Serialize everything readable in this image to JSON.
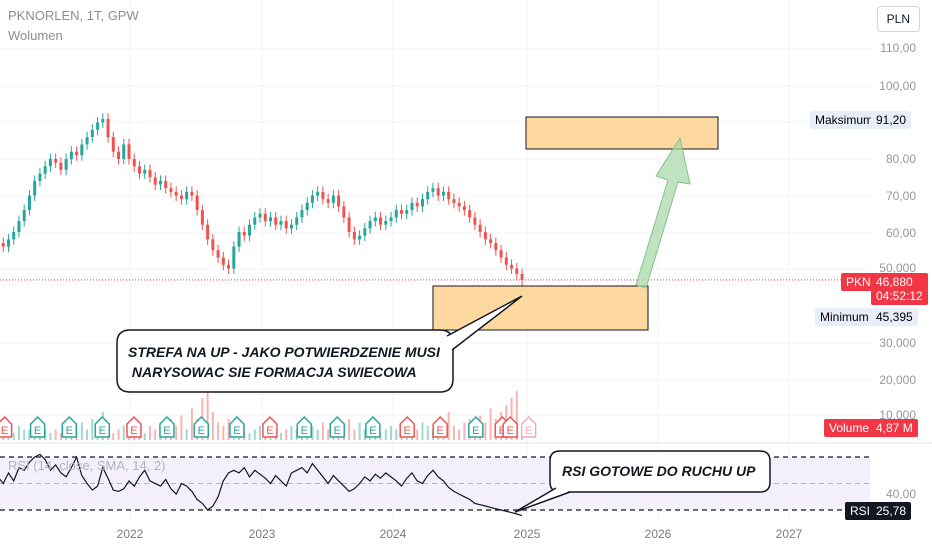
{
  "header": {
    "symbol": "PKNORLEN, 1T, GPW",
    "indicator": "Wolumen",
    "currency": "PLN"
  },
  "price_axis": [
    "110,00",
    "100,00",
    "80,00",
    "70,00",
    "60,00",
    "50,000",
    "30,000",
    "20,000",
    "10,000",
    "40,00"
  ],
  "tags": {
    "max_label": "Maksimum",
    "max_value": "91,20",
    "min_label": "Minimum",
    "min_value": "45,395",
    "pkn_label": "PKN",
    "pkn_price": "46,880",
    "pkn_timer": "04:52:12",
    "vol_label": "Volume",
    "vol_value": "4,87 M",
    "rsi_label": "RSI",
    "rsi_value": "25,78"
  },
  "rsi_legend": "RSI (14, close, SMA, 14, 2)",
  "annotations": {
    "zone": "STREFA NA UP - JAKO POTWIERDZENIE MUSI",
    "zone2": " NARYSOWAC SIE FORMACJA SWIECOWA",
    "rsi": "RSI GOTOWE DO RUCHU UP"
  },
  "colors": {
    "up": "#26a69a",
    "down": "#ef5350",
    "zone_fill": "#fdd9a0",
    "arrow": "#a5d6a7",
    "tag_red": "#f23645"
  },
  "earnings": [
    {
      "t": 2021.05,
      "r": "miss"
    },
    {
      "t": 2021.3,
      "r": "beat"
    },
    {
      "t": 2021.54,
      "r": "beat"
    },
    {
      "t": 2021.79,
      "r": "beat"
    },
    {
      "t": 2022.03,
      "r": "miss"
    },
    {
      "t": 2022.28,
      "r": "beat"
    },
    {
      "t": 2022.54,
      "r": "beat"
    },
    {
      "t": 2022.81,
      "r": "beat"
    },
    {
      "t": 2023.06,
      "r": "miss"
    },
    {
      "t": 2023.32,
      "r": "beat"
    },
    {
      "t": 2023.57,
      "r": "beat"
    },
    {
      "t": 2023.84,
      "r": "beat"
    },
    {
      "t": 2024.1,
      "r": "miss"
    },
    {
      "t": 2024.35,
      "r": "miss"
    },
    {
      "t": 2024.62,
      "r": "beat"
    },
    {
      "t": 2024.82,
      "r": "miss"
    },
    {
      "t": 2024.88,
      "r": "miss"
    },
    {
      "t": 2025.02,
      "r": "upcoming"
    }
  ],
  "chart_data": {
    "type": "candlestick",
    "x_ticks": [
      "2022",
      "2023",
      "2024",
      "2025",
      "2026",
      "2027"
    ],
    "x_start": 2021.0,
    "x_end": 2024.97,
    "close": [
      57,
      56,
      58,
      60,
      63,
      66,
      70,
      74,
      76,
      78,
      80,
      79,
      77,
      80,
      82,
      81,
      84,
      86,
      88,
      90,
      91,
      86,
      82,
      80,
      84,
      80,
      78,
      76,
      77,
      75,
      73,
      74,
      72,
      71,
      70,
      69,
      71,
      70,
      66,
      62,
      58,
      55,
      53,
      51,
      50,
      56,
      60,
      59,
      62,
      64,
      65,
      63,
      64,
      62,
      63,
      61,
      62,
      64,
      66,
      68,
      70,
      71,
      69,
      68,
      70,
      67,
      64,
      60,
      58,
      59,
      61,
      63,
      64,
      62,
      63,
      64,
      66,
      65,
      66,
      68,
      67,
      69,
      71,
      72,
      70,
      71,
      69,
      68,
      67,
      66,
      64,
      62,
      60,
      58,
      57,
      55,
      53,
      51,
      50,
      48.5,
      46.88
    ],
    "volume_m": [
      3,
      2,
      3,
      2,
      4,
      3,
      3,
      2,
      5,
      3,
      2,
      3,
      2,
      3,
      4,
      3,
      5,
      3,
      6,
      4,
      8,
      3,
      2,
      3,
      4,
      3,
      2,
      3,
      2,
      4,
      3,
      5,
      3,
      6,
      4,
      7,
      3,
      9,
      6,
      12,
      15,
      8,
      5,
      4,
      6,
      3,
      4,
      3,
      2,
      3,
      4,
      3,
      2,
      3,
      2,
      3,
      4,
      3,
      2,
      3,
      4,
      3,
      5,
      3,
      2,
      3,
      4,
      6,
      3,
      5,
      3,
      4,
      3,
      2,
      3,
      4,
      3,
      2,
      3,
      4,
      3,
      5,
      4,
      3,
      6,
      3,
      8,
      4,
      3,
      5,
      6,
      4,
      7,
      5,
      9,
      6,
      8,
      10,
      12,
      14,
      4.87
    ],
    "rsi": [
      55,
      50,
      58,
      52,
      62,
      60,
      66,
      70,
      72,
      68,
      60,
      64,
      58,
      55,
      62,
      70,
      56,
      50,
      45,
      48,
      62,
      54,
      45,
      44,
      46,
      52,
      48,
      55,
      60,
      52,
      50,
      48,
      53,
      46,
      42,
      50,
      48,
      44,
      38,
      35,
      30,
      33,
      40,
      52,
      58,
      60,
      58,
      62,
      55,
      60,
      57,
      54,
      50,
      56,
      52,
      48,
      58,
      60,
      62,
      58,
      65,
      60,
      55,
      50,
      56,
      52,
      48,
      44,
      46,
      50,
      55,
      52,
      57,
      54,
      58,
      55,
      52,
      48,
      54,
      58,
      52,
      50,
      56,
      60,
      55,
      52,
      47,
      44,
      42,
      40,
      38,
      35,
      34,
      33,
      32,
      31,
      30,
      29,
      28,
      27,
      25.78
    ],
    "rsi_levels": [
      70,
      50,
      30
    ],
    "max": 91.2,
    "min": 45.395,
    "last": 46.88
  }
}
